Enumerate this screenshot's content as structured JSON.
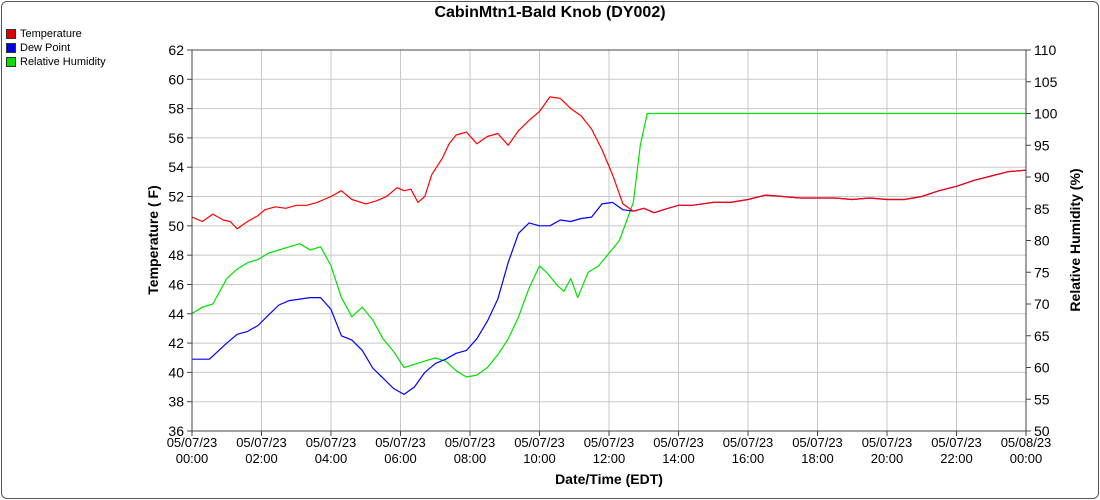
{
  "chart_data": {
    "type": "line",
    "title": "CabinMtn1-Bald Knob (DY002)",
    "xlabel": "Date/Time (EDT)",
    "ylabel_left": "Temperature ( F)",
    "ylabel_right": "Relative Humidity (%)",
    "ylim_left": [
      36,
      62
    ],
    "ylim_right": [
      50,
      110
    ],
    "y_ticks_left": [
      "36",
      "38",
      "40",
      "42",
      "44",
      "46",
      "48",
      "50",
      "52",
      "54",
      "56",
      "58",
      "60",
      "62"
    ],
    "y_ticks_right": [
      "50",
      "55",
      "60",
      "65",
      "70",
      "75",
      "80",
      "85",
      "90",
      "95",
      "100",
      "105",
      "110"
    ],
    "x_tick_labels": [
      {
        "date": "05/07/23",
        "time": "00:00"
      },
      {
        "date": "05/07/23",
        "time": "02:00"
      },
      {
        "date": "05/07/23",
        "time": "04:00"
      },
      {
        "date": "05/07/23",
        "time": "06:00"
      },
      {
        "date": "05/07/23",
        "time": "08:00"
      },
      {
        "date": "05/07/23",
        "time": "10:00"
      },
      {
        "date": "05/07/23",
        "time": "12:00"
      },
      {
        "date": "05/07/23",
        "time": "14:00"
      },
      {
        "date": "05/07/23",
        "time": "16:00"
      },
      {
        "date": "05/07/23",
        "time": "18:00"
      },
      {
        "date": "05/07/23",
        "time": "20:00"
      },
      {
        "date": "05/07/23",
        "time": "22:00"
      },
      {
        "date": "05/08/23",
        "time": "00:00"
      }
    ],
    "grid": true,
    "legend_position": "top-left",
    "series": [
      {
        "name": "Temperature",
        "axis": "left",
        "color": "#ff0000",
        "x_hours": [
          0,
          0.3,
          0.6,
          0.9,
          1.1,
          1.3,
          1.6,
          1.9,
          2.1,
          2.4,
          2.7,
          3.0,
          3.3,
          3.6,
          4.0,
          4.3,
          4.6,
          5.0,
          5.3,
          5.6,
          5.9,
          6.1,
          6.3,
          6.5,
          6.7,
          6.9,
          7.2,
          7.4,
          7.6,
          7.9,
          8.2,
          8.5,
          8.8,
          9.1,
          9.4,
          9.7,
          10.0,
          10.3,
          10.6,
          10.9,
          11.2,
          11.5,
          11.8,
          12.1,
          12.4,
          12.7,
          13.0,
          13.3,
          13.7,
          14.0,
          14.4,
          15.0,
          15.5,
          16.0,
          16.5,
          17.0,
          17.5,
          18.0,
          18.5,
          19.0,
          19.5,
          20.0,
          20.5,
          21.0,
          21.5,
          22.0,
          22.5,
          23.0,
          23.5,
          24.0
        ],
        "values": [
          50.6,
          50.3,
          50.8,
          50.4,
          50.3,
          49.8,
          50.3,
          50.7,
          51.1,
          51.3,
          51.2,
          51.4,
          51.4,
          51.6,
          52.0,
          52.4,
          51.8,
          51.5,
          51.7,
          52.0,
          52.6,
          52.4,
          52.5,
          51.6,
          52.0,
          53.5,
          54.6,
          55.6,
          56.2,
          56.4,
          55.6,
          56.1,
          56.3,
          55.5,
          56.5,
          57.2,
          57.8,
          58.8,
          58.7,
          58.0,
          57.5,
          56.6,
          55.2,
          53.5,
          51.5,
          51.0,
          51.2,
          50.9,
          51.2,
          51.4,
          51.4,
          51.6,
          51.6,
          51.8,
          52.1,
          52.0,
          51.9,
          51.9,
          51.9,
          51.8,
          51.9,
          51.8,
          51.8,
          52.0,
          52.4,
          52.7,
          53.1,
          53.4,
          53.7,
          53.8
        ]
      },
      {
        "name": "Dew Point",
        "axis": "left",
        "color": "#0000ff",
        "x_hours": [
          0,
          0.5,
          1.0,
          1.3,
          1.6,
          1.9,
          2.2,
          2.5,
          2.8,
          3.1,
          3.4,
          3.7,
          4.0,
          4.3,
          4.6,
          4.9,
          5.2,
          5.5,
          5.8,
          6.1,
          6.4,
          6.7,
          7.0,
          7.3,
          7.6,
          7.9,
          8.2,
          8.5,
          8.8,
          9.1,
          9.4,
          9.7,
          10.0,
          10.3,
          10.6,
          10.9,
          11.2,
          11.5,
          11.8,
          12.1,
          12.4,
          12.7,
          13.0,
          13.3,
          13.7,
          14.0,
          14.4,
          15.0,
          15.5,
          16.0,
          16.5,
          17.0,
          17.5,
          18.0,
          18.5,
          19.0,
          19.5,
          20.0,
          20.5,
          21.0,
          21.5,
          22.0,
          22.5,
          23.0,
          23.5,
          24.0
        ],
        "values": [
          40.9,
          40.9,
          42.0,
          42.6,
          42.8,
          43.2,
          43.9,
          44.6,
          44.9,
          45.0,
          45.1,
          45.1,
          44.3,
          42.5,
          42.2,
          41.5,
          40.3,
          39.6,
          38.9,
          38.5,
          39.0,
          40.0,
          40.6,
          40.9,
          41.3,
          41.5,
          42.3,
          43.5,
          45.0,
          47.5,
          49.5,
          50.2,
          50.0,
          50.0,
          50.4,
          50.3,
          50.5,
          50.6,
          51.5,
          51.6,
          51.1,
          51.0,
          51.2,
          50.9,
          51.2,
          51.4,
          51.4,
          51.6,
          51.6,
          51.8,
          52.1,
          52.0,
          51.9,
          51.9,
          51.9,
          51.8,
          51.9,
          51.8,
          51.8,
          52.0,
          52.4,
          52.7,
          53.1,
          53.4,
          53.7,
          53.8
        ]
      },
      {
        "name": "Relative Humidity",
        "axis": "right",
        "color": "#00e000",
        "x_hours": [
          0,
          0.3,
          0.6,
          0.8,
          1.0,
          1.3,
          1.6,
          1.9,
          2.2,
          2.5,
          2.8,
          3.1,
          3.4,
          3.7,
          4.0,
          4.3,
          4.6,
          4.9,
          5.2,
          5.5,
          5.8,
          6.1,
          6.4,
          6.7,
          7.0,
          7.3,
          7.6,
          7.9,
          8.2,
          8.5,
          8.8,
          9.1,
          9.4,
          9.7,
          10.0,
          10.2,
          10.5,
          10.7,
          10.9,
          11.1,
          11.4,
          11.7,
          12.0,
          12.3,
          12.5,
          12.7,
          12.9,
          13.1,
          13.4,
          14.0,
          16.0,
          18.0,
          20.0,
          22.0,
          24.0
        ],
        "values": [
          68.5,
          69.5,
          70,
          72,
          74,
          75.5,
          76.5,
          77,
          78,
          78.5,
          79,
          79.5,
          78.5,
          79,
          76,
          71,
          68,
          69.5,
          67.5,
          64.5,
          62.5,
          60,
          60.5,
          61,
          61.5,
          61,
          59.5,
          58.5,
          58.8,
          60,
          62,
          64.5,
          68,
          72.5,
          76,
          75,
          73,
          72,
          74,
          71,
          75,
          76,
          78,
          80,
          83,
          86,
          95,
          100,
          100,
          100,
          100,
          100,
          100,
          100,
          100
        ]
      }
    ]
  }
}
